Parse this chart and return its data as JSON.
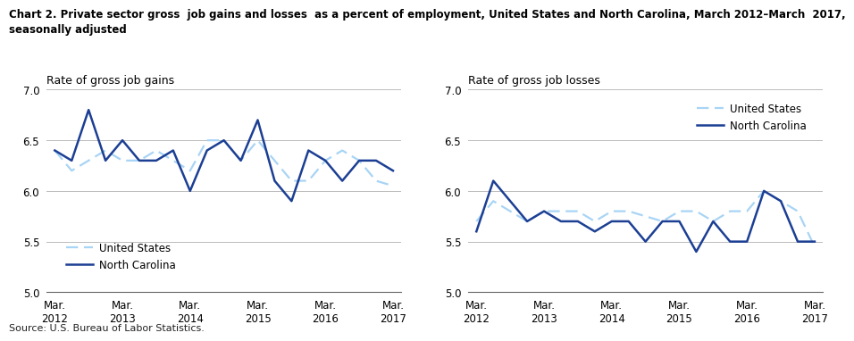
{
  "title_line1": "Chart 2. Private sector gross  job gains and losses  as a percent of employment, United States and North Carolina, March 2012–March  2017,",
  "title_line2": "seasonally adjusted",
  "left_ylabel": "Rate of gross job gains",
  "right_ylabel": "Rate of gross job losses",
  "source": "Source: U.S. Bureau of Labor Statistics.",
  "x_labels": [
    "Mar.\n2012",
    "Mar.\n2013",
    "Mar.\n2014",
    "Mar.\n2015",
    "Mar.\n2016",
    "Mar.\n2017"
  ],
  "x_positions": [
    0,
    4,
    8,
    12,
    16,
    20
  ],
  "ylim": [
    5.0,
    7.0
  ],
  "yticks": [
    5.0,
    5.5,
    6.0,
    6.5,
    7.0
  ],
  "color_us": "#a8d4f5",
  "color_nc": "#1c3f94",
  "gains_nc": [
    6.4,
    6.3,
    6.8,
    6.3,
    6.5,
    6.3,
    6.3,
    6.4,
    6.0,
    6.4,
    6.5,
    6.3,
    6.7,
    6.1,
    5.9,
    6.4,
    6.3,
    6.1,
    6.3,
    6.3,
    6.2
  ],
  "gains_us": [
    6.4,
    6.2,
    6.3,
    6.4,
    6.3,
    6.3,
    6.4,
    6.3,
    6.2,
    6.5,
    6.5,
    6.3,
    6.5,
    6.3,
    6.1,
    6.1,
    6.3,
    6.4,
    6.3,
    6.1,
    6.05
  ],
  "losses_nc": [
    5.6,
    6.1,
    5.9,
    5.7,
    5.8,
    5.7,
    5.7,
    5.6,
    5.7,
    5.7,
    5.5,
    5.7,
    5.7,
    5.4,
    5.7,
    5.5,
    5.5,
    6.0,
    5.9,
    5.5,
    5.5
  ],
  "losses_us": [
    5.7,
    5.9,
    5.8,
    5.7,
    5.8,
    5.8,
    5.8,
    5.7,
    5.8,
    5.8,
    5.75,
    5.7,
    5.8,
    5.8,
    5.7,
    5.8,
    5.8,
    6.0,
    5.9,
    5.8,
    5.45
  ]
}
